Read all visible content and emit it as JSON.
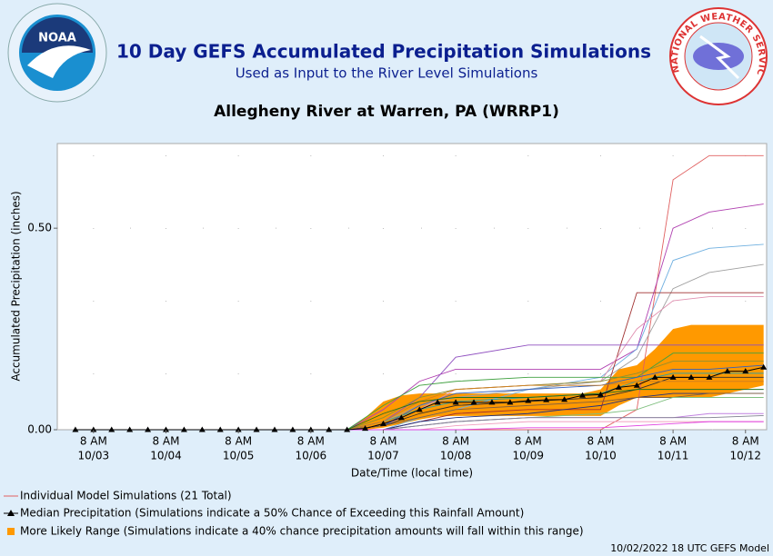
{
  "logos": {
    "noaa": "NOAA",
    "nws": "NATIONAL WEATHER SERVICE"
  },
  "chart_data": {
    "type": "line",
    "title": "10 Day GEFS Accumulated Precipitation Simulations",
    "subtitle": "Used as Input to the River Level Simulations",
    "station": "Allegheny River at Warren, PA (WRRP1)",
    "xlabel": "Date/Time (local time)",
    "ylabel": "Accumulated Precipitation (inches)",
    "footer": "10/02/2022 18 UTC GEFS Model",
    "grid": true,
    "ylim": [
      0,
      0.71
    ],
    "yticks": [
      {
        "value": 0,
        "label": "0.00"
      },
      {
        "value": 0.5,
        "label": "0.50"
      }
    ],
    "xlim": [
      "10/02 20:00",
      "10/12 15:00"
    ],
    "xticks": [
      {
        "value": "10/03 08:00",
        "label": [
          "8 AM",
          "10/03"
        ]
      },
      {
        "value": "10/04 08:00",
        "label": [
          "8 AM",
          "10/04"
        ]
      },
      {
        "value": "10/05 08:00",
        "label": [
          "8 AM",
          "10/05"
        ]
      },
      {
        "value": "10/06 08:00",
        "label": [
          "8 AM",
          "10/06"
        ]
      },
      {
        "value": "10/07 08:00",
        "label": [
          "8 AM",
          "10/07"
        ]
      },
      {
        "value": "10/08 08:00",
        "label": [
          "8 AM",
          "10/08"
        ]
      },
      {
        "value": "10/09 08:00",
        "label": [
          "8 AM",
          "10/09"
        ]
      },
      {
        "value": "10/10 08:00",
        "label": [
          "8 AM",
          "10/10"
        ]
      },
      {
        "value": "10/11 08:00",
        "label": [
          "8 AM",
          "10/11"
        ]
      },
      {
        "value": "10/12 08:00",
        "label": [
          "8 AM",
          "10/12"
        ]
      }
    ],
    "x": [
      "10/03 02:00",
      "10/03 08:00",
      "10/03 14:00",
      "10/03 20:00",
      "10/04 02:00",
      "10/04 08:00",
      "10/04 14:00",
      "10/04 20:00",
      "10/05 02:00",
      "10/05 08:00",
      "10/05 14:00",
      "10/05 20:00",
      "10/06 02:00",
      "10/06 08:00",
      "10/06 14:00",
      "10/06 20:00",
      "10/07 02:00",
      "10/07 08:00",
      "10/07 14:00",
      "10/07 20:00",
      "10/08 02:00",
      "10/08 08:00",
      "10/08 14:00",
      "10/08 20:00",
      "10/09 02:00",
      "10/09 08:00",
      "10/09 14:00",
      "10/09 20:00",
      "10/10 02:00",
      "10/10 08:00",
      "10/10 14:00",
      "10/10 20:00",
      "10/11 02:00",
      "10/11 08:00",
      "10/11 14:00",
      "10/11 20:00",
      "10/12 02:00",
      "10/12 08:00",
      "10/12 14:00"
    ],
    "median": {
      "name": "Median Precipitation (Simulations indicate a 50% Chance of Exceeding this Rainfall Amount)",
      "color": "#000000",
      "values": [
        0,
        0,
        0,
        0,
        0,
        0,
        0,
        0,
        0,
        0,
        0,
        0,
        0,
        0,
        0,
        0,
        0.003,
        0.015,
        0.03,
        0.05,
        0.068,
        0.068,
        0.068,
        0.068,
        0.068,
        0.072,
        0.074,
        0.075,
        0.085,
        0.087,
        0.105,
        0.11,
        0.13,
        0.13,
        0.13,
        0.13,
        0.145,
        0.145,
        0.155
      ]
    },
    "range": {
      "name": "More Likely Range (Simulations indicate a 40% chance precipitation amounts will fall within this range)",
      "color": "#ff9900",
      "low": [
        null,
        null,
        null,
        null,
        null,
        null,
        null,
        null,
        null,
        null,
        null,
        null,
        null,
        null,
        null,
        0,
        0,
        0.005,
        0.015,
        0.025,
        0.033,
        0.034,
        0.034,
        0.034,
        0.034,
        0.034,
        0.034,
        0.034,
        0.034,
        0.034,
        0.06,
        0.08,
        0.08,
        0.08,
        0.08,
        0.08,
        0.09,
        0.1,
        0.11
      ],
      "high": [
        null,
        null,
        null,
        null,
        null,
        null,
        null,
        null,
        null,
        null,
        null,
        null,
        null,
        null,
        null,
        0,
        0.03,
        0.07,
        0.085,
        0.09,
        0.09,
        0.09,
        0.09,
        0.09,
        0.09,
        0.09,
        0.09,
        0.09,
        0.09,
        0.1,
        0.15,
        0.16,
        0.2,
        0.25,
        0.26,
        0.26,
        0.26,
        0.26,
        0.26
      ]
    },
    "simulations": {
      "name": "Individual Model Simulations (21 Total)",
      "color": "#e06060",
      "x": [
        "10/03 02:00",
        "10/06 20:00",
        "10/07 08:00",
        "10/07 20:00",
        "10/08 08:00",
        "10/09 08:00",
        "10/10 08:00",
        "10/10 20:00",
        "10/11 08:00",
        "10/11 20:00",
        "10/12 14:00"
      ],
      "series": [
        {
          "color": "#e06060",
          "values": [
            0,
            0,
            0,
            0,
            0,
            0,
            0,
            0.05,
            0.62,
            0.68,
            0.68
          ]
        },
        {
          "color": "#b040b0",
          "values": [
            0,
            0,
            0.05,
            0.12,
            0.15,
            0.15,
            0.15,
            0.2,
            0.5,
            0.54,
            0.56
          ]
        },
        {
          "color": "#70b0e0",
          "values": [
            0,
            0,
            0,
            0.03,
            0.05,
            0.1,
            0.13,
            0.2,
            0.42,
            0.45,
            0.46
          ]
        },
        {
          "color": "#a0a0a0",
          "values": [
            0,
            0,
            0.02,
            0.06,
            0.08,
            0.1,
            0.12,
            0.18,
            0.35,
            0.39,
            0.41
          ]
        },
        {
          "color": "#a03030",
          "values": [
            0,
            0,
            0,
            0.02,
            0.04,
            0.05,
            0.05,
            0.34,
            0.34,
            0.34,
            0.34
          ]
        },
        {
          "color": "#e090b0",
          "values": [
            0,
            0,
            0.01,
            0.05,
            0.1,
            0.11,
            0.12,
            0.25,
            0.32,
            0.33,
            0.33
          ]
        },
        {
          "color": "#9050c0",
          "values": [
            0,
            0,
            0.02,
            0.08,
            0.18,
            0.21,
            0.21,
            0.21,
            0.21,
            0.21,
            0.21
          ]
        },
        {
          "color": "#40a040",
          "values": [
            0,
            0,
            0.06,
            0.11,
            0.12,
            0.13,
            0.13,
            0.13,
            0.19,
            0.19,
            0.19
          ]
        },
        {
          "color": "#909030",
          "values": [
            0,
            0,
            0.03,
            0.08,
            0.1,
            0.11,
            0.12,
            0.14,
            0.17,
            0.17,
            0.17
          ]
        },
        {
          "color": "#3060c0",
          "values": [
            0,
            0,
            0.01,
            0.06,
            0.09,
            0.1,
            0.11,
            0.13,
            0.15,
            0.15,
            0.16
          ]
        },
        {
          "color": "#30a0a0",
          "values": [
            0,
            0,
            0.02,
            0.05,
            0.07,
            0.08,
            0.09,
            0.12,
            0.14,
            0.14,
            0.14
          ]
        },
        {
          "color": "#303030",
          "values": [
            0,
            0,
            0.01,
            0.04,
            0.06,
            0.07,
            0.08,
            0.1,
            0.13,
            0.13,
            0.13
          ]
        },
        {
          "color": "#d08020",
          "values": [
            0,
            0,
            0.02,
            0.07,
            0.1,
            0.11,
            0.11,
            0.12,
            0.12,
            0.12,
            0.12
          ]
        },
        {
          "color": "#207020",
          "values": [
            0,
            0,
            0.04,
            0.07,
            0.08,
            0.08,
            0.09,
            0.1,
            0.1,
            0.1,
            0.1
          ]
        },
        {
          "color": "#203080",
          "values": [
            0,
            0,
            0,
            0.02,
            0.03,
            0.04,
            0.06,
            0.08,
            0.09,
            0.09,
            0.09
          ]
        },
        {
          "color": "#806040",
          "values": [
            0,
            0,
            0.01,
            0.03,
            0.05,
            0.06,
            0.07,
            0.08,
            0.08,
            0.09,
            0.09
          ]
        },
        {
          "color": "#80c080",
          "values": [
            0,
            0,
            0,
            0.01,
            0.02,
            0.03,
            0.04,
            0.05,
            0.08,
            0.08,
            0.08
          ]
        },
        {
          "color": "#c080e0",
          "values": [
            0,
            0,
            0,
            0.01,
            0.02,
            0.03,
            0.03,
            0.03,
            0.03,
            0.04,
            0.04
          ]
        },
        {
          "color": "#808090",
          "values": [
            0,
            0,
            0,
            0.01,
            0.02,
            0.03,
            0.03,
            0.03,
            0.03,
            0.03,
            0.035
          ]
        },
        {
          "color": "#f0a0c0",
          "values": [
            0,
            0,
            0,
            0,
            0.01,
            0.02,
            0.02,
            0.02,
            0.02,
            0.02,
            0.02
          ]
        },
        {
          "color": "#e040e0",
          "values": [
            0,
            0,
            0,
            0,
            0,
            0.005,
            0.005,
            0.01,
            0.015,
            0.02,
            0.02
          ]
        }
      ]
    }
  }
}
